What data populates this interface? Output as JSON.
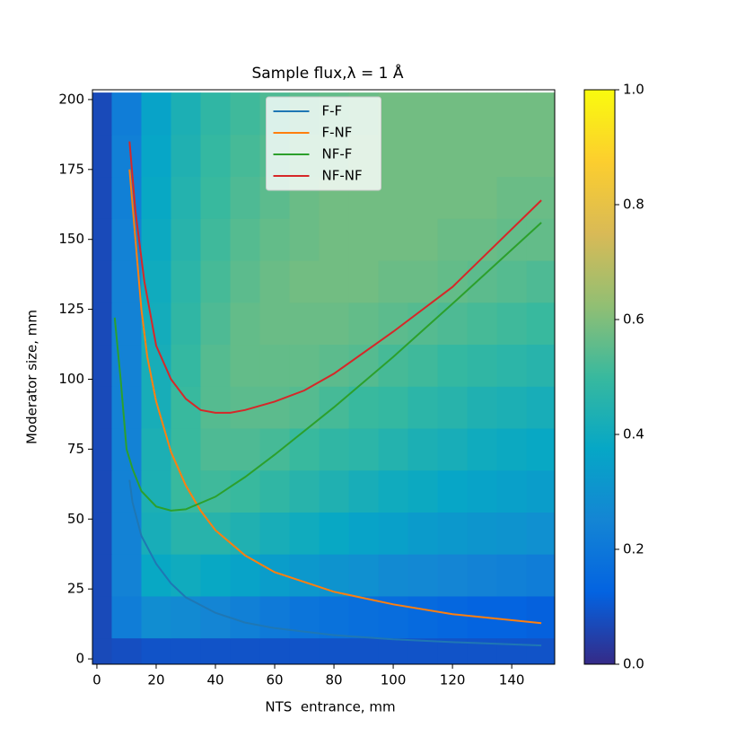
{
  "chart_data": {
    "type": "heatmap",
    "title": "Sample flux,λ = 1 Å",
    "xlabel": "NTS  entrance, mm",
    "ylabel": "Moderator size, mm",
    "xlim": [
      -1.5,
      154.5
    ],
    "ylim": [
      -1.9,
      203.5
    ],
    "xticks": [
      0,
      20,
      40,
      60,
      80,
      100,
      120,
      140
    ],
    "yticks": [
      0,
      25,
      50,
      75,
      100,
      125,
      150,
      175,
      200
    ],
    "heatmap": {
      "x": [
        0,
        10,
        20,
        30,
        40,
        50,
        60,
        70,
        80,
        90,
        100,
        110,
        120,
        130,
        140,
        150
      ],
      "y": [
        0,
        15,
        30,
        45,
        60,
        75,
        90,
        105,
        120,
        135,
        150,
        165,
        180,
        195
      ],
      "z": [
        [
          0.07,
          0.08,
          0.09,
          0.09,
          0.09,
          0.09,
          0.09,
          0.09,
          0.09,
          0.09,
          0.09,
          0.09,
          0.09,
          0.09,
          0.09,
          0.09
        ],
        [
          0.07,
          0.22,
          0.28,
          0.27,
          0.25,
          0.23,
          0.21,
          0.19,
          0.18,
          0.17,
          0.16,
          0.15,
          0.14,
          0.13,
          0.13,
          0.12
        ],
        [
          0.07,
          0.24,
          0.38,
          0.4,
          0.38,
          0.36,
          0.34,
          0.32,
          0.3,
          0.29,
          0.27,
          0.26,
          0.25,
          0.24,
          0.23,
          0.22
        ],
        [
          0.07,
          0.24,
          0.42,
          0.46,
          0.46,
          0.44,
          0.42,
          0.4,
          0.38,
          0.36,
          0.35,
          0.33,
          0.32,
          0.31,
          0.3,
          0.29
        ],
        [
          0.07,
          0.24,
          0.43,
          0.5,
          0.51,
          0.5,
          0.48,
          0.46,
          0.44,
          0.42,
          0.4,
          0.39,
          0.37,
          0.36,
          0.35,
          0.34
        ],
        [
          0.07,
          0.24,
          0.43,
          0.5,
          0.53,
          0.53,
          0.52,
          0.5,
          0.48,
          0.47,
          0.45,
          0.43,
          0.42,
          0.4,
          0.39,
          0.38
        ],
        [
          0.07,
          0.24,
          0.42,
          0.5,
          0.54,
          0.55,
          0.55,
          0.54,
          0.52,
          0.5,
          0.49,
          0.47,
          0.46,
          0.44,
          0.43,
          0.42
        ],
        [
          0.07,
          0.24,
          0.42,
          0.49,
          0.54,
          0.56,
          0.56,
          0.56,
          0.55,
          0.54,
          0.52,
          0.51,
          0.49,
          0.48,
          0.47,
          0.46
        ],
        [
          0.07,
          0.24,
          0.41,
          0.48,
          0.53,
          0.56,
          0.57,
          0.57,
          0.57,
          0.56,
          0.55,
          0.54,
          0.53,
          0.52,
          0.51,
          0.5
        ],
        [
          0.07,
          0.24,
          0.4,
          0.47,
          0.52,
          0.55,
          0.57,
          0.58,
          0.58,
          0.58,
          0.57,
          0.57,
          0.56,
          0.55,
          0.54,
          0.53
        ],
        [
          0.07,
          0.24,
          0.39,
          0.46,
          0.51,
          0.54,
          0.56,
          0.57,
          0.58,
          0.58,
          0.58,
          0.58,
          0.57,
          0.57,
          0.56,
          0.56
        ],
        [
          0.07,
          0.23,
          0.38,
          0.45,
          0.5,
          0.53,
          0.55,
          0.57,
          0.58,
          0.58,
          0.58,
          0.58,
          0.58,
          0.58,
          0.57,
          0.57
        ],
        [
          0.07,
          0.23,
          0.37,
          0.44,
          0.49,
          0.52,
          0.54,
          0.56,
          0.57,
          0.58,
          0.58,
          0.58,
          0.58,
          0.58,
          0.58,
          0.58
        ],
        [
          0.07,
          0.22,
          0.36,
          0.43,
          0.48,
          0.51,
          0.53,
          0.55,
          0.56,
          0.57,
          0.58,
          0.58,
          0.58,
          0.58,
          0.58,
          0.58
        ]
      ]
    },
    "colormap": [
      "#352a87",
      "#0363e1",
      "#1485d4",
      "#06a7c6",
      "#38b99e",
      "#92bf73",
      "#d9ba56",
      "#fcce2e",
      "#f9fb0e"
    ],
    "clim": [
      0,
      1
    ],
    "cticks": [
      {
        "value": 0,
        "label": "0.0"
      },
      0.2,
      0.4,
      0.6,
      0.8,
      {
        "value": 1,
        "label": "1.0"
      }
    ],
    "legend": "upper center",
    "series": [
      {
        "name": "F-F",
        "color": "#1f77b4",
        "x": [
          11,
          12,
          15,
          20,
          25,
          30,
          40,
          50,
          60,
          80,
          100,
          120,
          150
        ],
        "values": [
          64,
          56,
          44,
          34,
          27,
          22,
          16.5,
          13,
          11,
          8.5,
          7,
          6,
          4.8
        ]
      },
      {
        "name": "F-NF",
        "color": "#ff7f0e",
        "x": [
          11,
          13,
          15,
          17,
          20,
          25,
          30,
          35,
          40,
          50,
          60,
          80,
          100,
          120,
          150
        ],
        "values": [
          175,
          150,
          125,
          108,
          92,
          74,
          62,
          53,
          46,
          37,
          31,
          24,
          19.5,
          16,
          12.8
        ]
      },
      {
        "name": "NF-F",
        "color": "#2ca02c",
        "x": [
          6,
          8,
          10,
          12,
          15,
          20,
          25,
          30,
          40,
          50,
          60,
          80,
          100,
          120,
          150
        ],
        "values": [
          122,
          100,
          75,
          68,
          60,
          54.5,
          53,
          53.5,
          58,
          65,
          73,
          90,
          108,
          127,
          156
        ]
      },
      {
        "name": "NF-NF",
        "color": "#d62728",
        "x": [
          11,
          13,
          16,
          20,
          25,
          30,
          35,
          40,
          45,
          50,
          60,
          70,
          80,
          100,
          120,
          150
        ],
        "values": [
          185,
          160,
          135,
          112,
          100,
          93,
          89,
          88,
          88,
          89,
          92,
          96,
          102,
          117,
          133,
          164
        ]
      }
    ]
  }
}
